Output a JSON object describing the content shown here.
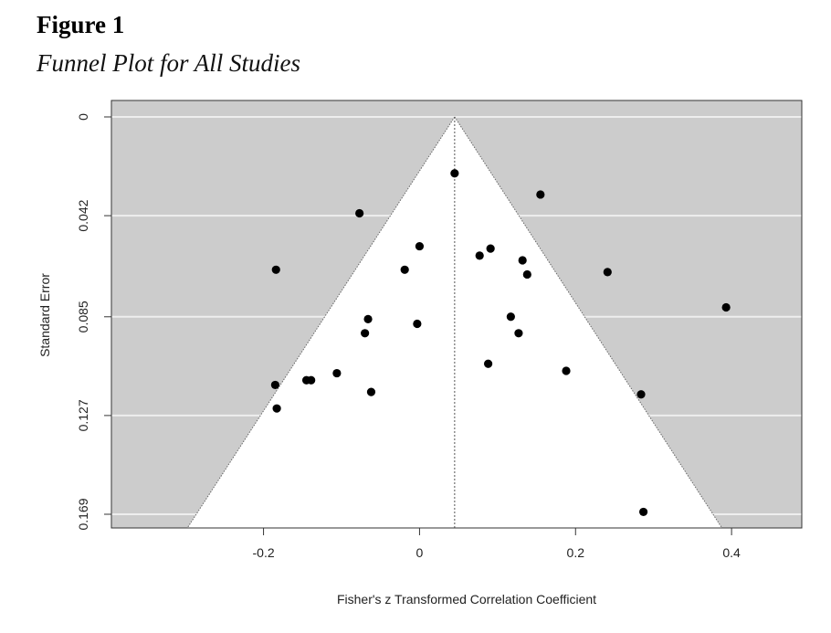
{
  "figure": {
    "label": "Figure 1",
    "title": "Funnel Plot for All Studies"
  },
  "chart_data": {
    "type": "scatter",
    "title": "Funnel Plot for All Studies",
    "xlabel": "Fisher's z Transformed Correlation Coefficient",
    "ylabel": "Standard Error",
    "xlim": [
      -0.395,
      0.49
    ],
    "ylim": [
      0.1735,
      0
    ],
    "y_reversed": true,
    "xticks": [
      -0.2,
      0,
      0.2,
      0.4
    ],
    "xtick_labels": [
      "-0.2",
      "0",
      "0.2",
      "0.4"
    ],
    "yticks": [
      0,
      0.042,
      0.085,
      0.127,
      0.169
    ],
    "ytick_labels": [
      "0",
      "0.042",
      "0.085",
      "0.127",
      "0.169"
    ],
    "pooled_estimate": 0.045,
    "funnel_z": 1.96,
    "grid": true,
    "colors": {
      "outside_funnel": "#cccccc",
      "inside_funnel": "#ffffff",
      "gridline": "#eeeeee",
      "points": "#000000"
    },
    "points": [
      {
        "x": 0.045,
        "y": 0.024
      },
      {
        "x": 0.155,
        "y": 0.033
      },
      {
        "x": -0.077,
        "y": 0.041
      },
      {
        "x": 0.0,
        "y": 0.055
      },
      {
        "x": 0.091,
        "y": 0.056
      },
      {
        "x": 0.077,
        "y": 0.059
      },
      {
        "x": 0.132,
        "y": 0.061
      },
      {
        "x": -0.184,
        "y": 0.065
      },
      {
        "x": -0.019,
        "y": 0.065
      },
      {
        "x": 0.241,
        "y": 0.066
      },
      {
        "x": 0.138,
        "y": 0.067
      },
      {
        "x": 0.393,
        "y": 0.081
      },
      {
        "x": 0.117,
        "y": 0.085
      },
      {
        "x": -0.066,
        "y": 0.086
      },
      {
        "x": -0.003,
        "y": 0.088
      },
      {
        "x": -0.07,
        "y": 0.092
      },
      {
        "x": 0.127,
        "y": 0.092
      },
      {
        "x": 0.088,
        "y": 0.105
      },
      {
        "x": 0.188,
        "y": 0.108
      },
      {
        "x": -0.106,
        "y": 0.109
      },
      {
        "x": -0.145,
        "y": 0.112
      },
      {
        "x": -0.139,
        "y": 0.112
      },
      {
        "x": -0.185,
        "y": 0.114
      },
      {
        "x": -0.062,
        "y": 0.117
      },
      {
        "x": 0.284,
        "y": 0.118
      },
      {
        "x": -0.183,
        "y": 0.124
      },
      {
        "x": 0.287,
        "y": 0.168
      }
    ]
  }
}
